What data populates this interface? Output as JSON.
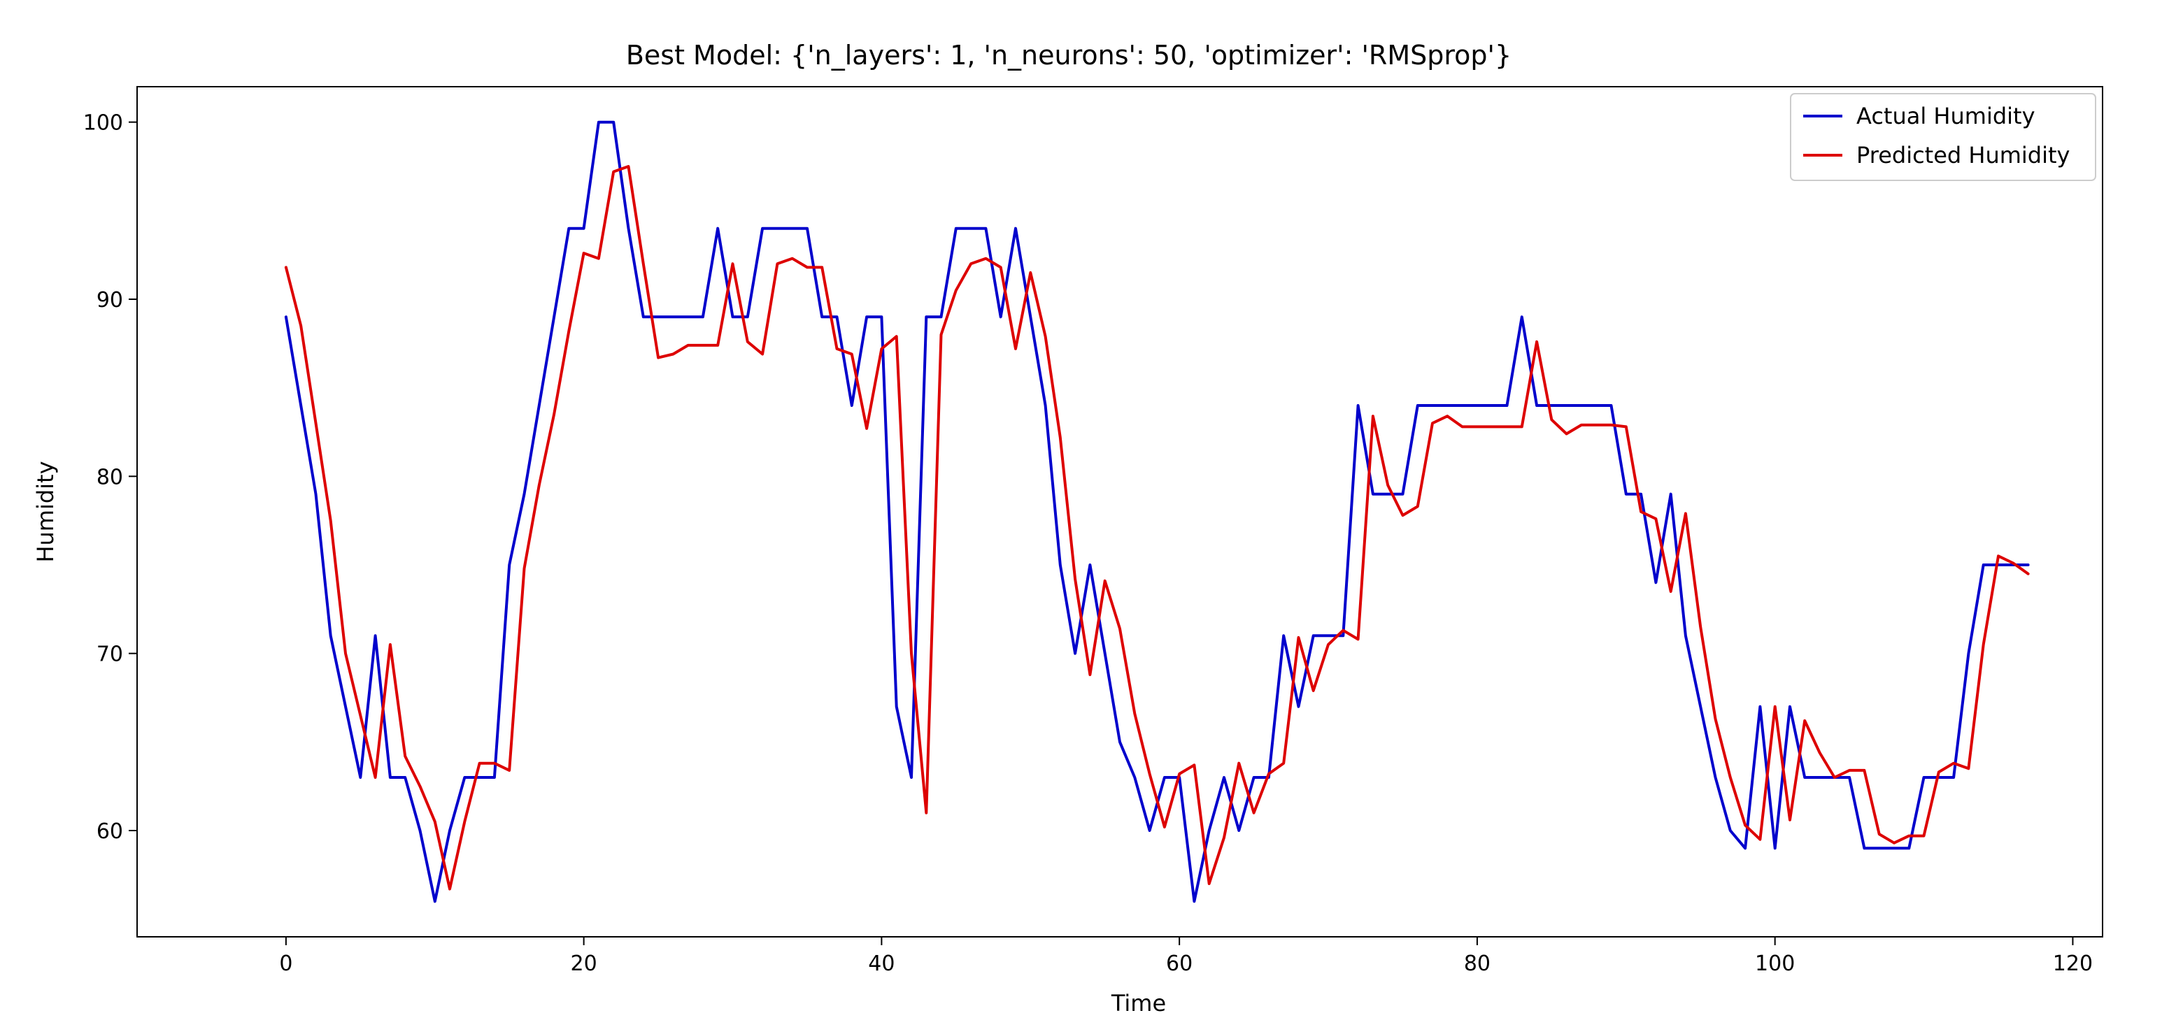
{
  "chart_data": {
    "type": "line",
    "title": "Best Model: {'n_layers': 1, 'n_neurons': 50, 'optimizer': 'RMSprop'}",
    "xlabel": "Time",
    "ylabel": "Humidity",
    "xlim": [
      -10,
      122
    ],
    "ylim": [
      54,
      102
    ],
    "xticks": [
      0,
      20,
      40,
      60,
      80,
      100,
      120
    ],
    "yticks": [
      60,
      70,
      80,
      90,
      100
    ],
    "grid": false,
    "legend": "top-right",
    "series": [
      {
        "name": "Actual Humidity",
        "color": "#0000cc",
        "values": [
          89,
          84,
          79,
          71,
          67,
          63,
          71,
          63,
          63,
          60,
          56,
          60,
          63,
          63,
          63,
          75,
          79,
          84,
          89,
          94,
          94,
          100,
          100,
          94,
          89,
          89,
          89,
          89,
          89,
          94,
          89,
          89,
          94,
          94,
          94,
          94,
          89,
          89,
          84,
          89,
          89,
          67,
          63,
          89,
          89,
          94,
          94,
          94,
          89,
          94,
          89,
          84,
          75,
          70,
          75,
          70,
          65,
          63,
          60,
          63,
          63,
          56,
          60,
          63,
          60,
          63,
          63,
          71,
          67,
          71,
          71,
          71,
          84,
          79,
          79,
          79,
          84,
          84,
          84,
          84,
          84,
          84,
          84,
          89,
          84,
          84,
          84,
          84,
          84,
          84,
          79,
          79,
          74,
          79,
          71,
          67,
          63,
          60,
          59,
          67,
          59,
          67,
          63,
          63,
          63,
          63,
          59,
          59,
          59,
          59,
          63,
          63,
          63,
          70,
          75,
          75,
          75,
          75
        ]
      },
      {
        "name": "Predicted Humidity",
        "color": "#dd0000",
        "values": [
          91.8,
          88.5,
          83,
          77.5,
          70,
          66.5,
          63,
          70.5,
          64.2,
          62.5,
          60.5,
          56.7,
          60.5,
          63.8,
          63.8,
          63.4,
          74.8,
          79.5,
          83.5,
          88.2,
          92.6,
          92.3,
          97.2,
          97.5,
          92,
          86.7,
          86.9,
          87.4,
          87.4,
          87.4,
          92,
          87.6,
          86.9,
          92,
          92.3,
          91.8,
          91.8,
          87.2,
          86.9,
          82.7,
          87.2,
          87.9,
          70,
          61,
          88,
          90.5,
          92,
          92.3,
          91.8,
          87.2,
          91.5,
          87.9,
          82.2,
          74.2,
          68.8,
          74.1,
          71.4,
          66.6,
          63.2,
          60.2,
          63.2,
          63.7,
          57,
          59.6,
          63.8,
          61,
          63.2,
          63.8,
          70.9,
          67.9,
          70.5,
          71.3,
          70.8,
          83.4,
          79.5,
          77.8,
          78.3,
          83,
          83.4,
          82.8,
          82.8,
          82.8,
          82.8,
          82.8,
          87.6,
          83.2,
          82.4,
          82.9,
          82.9,
          82.9,
          82.8,
          78,
          77.6,
          73.5,
          77.9,
          71.5,
          66.3,
          63,
          60.3,
          59.5,
          67,
          60.6,
          66.2,
          64.4,
          63,
          63.4,
          63.4,
          59.8,
          59.3,
          59.7,
          59.7,
          63.3,
          63.8,
          63.5,
          70.5,
          75.5,
          75.1,
          74.5
        ]
      }
    ]
  }
}
